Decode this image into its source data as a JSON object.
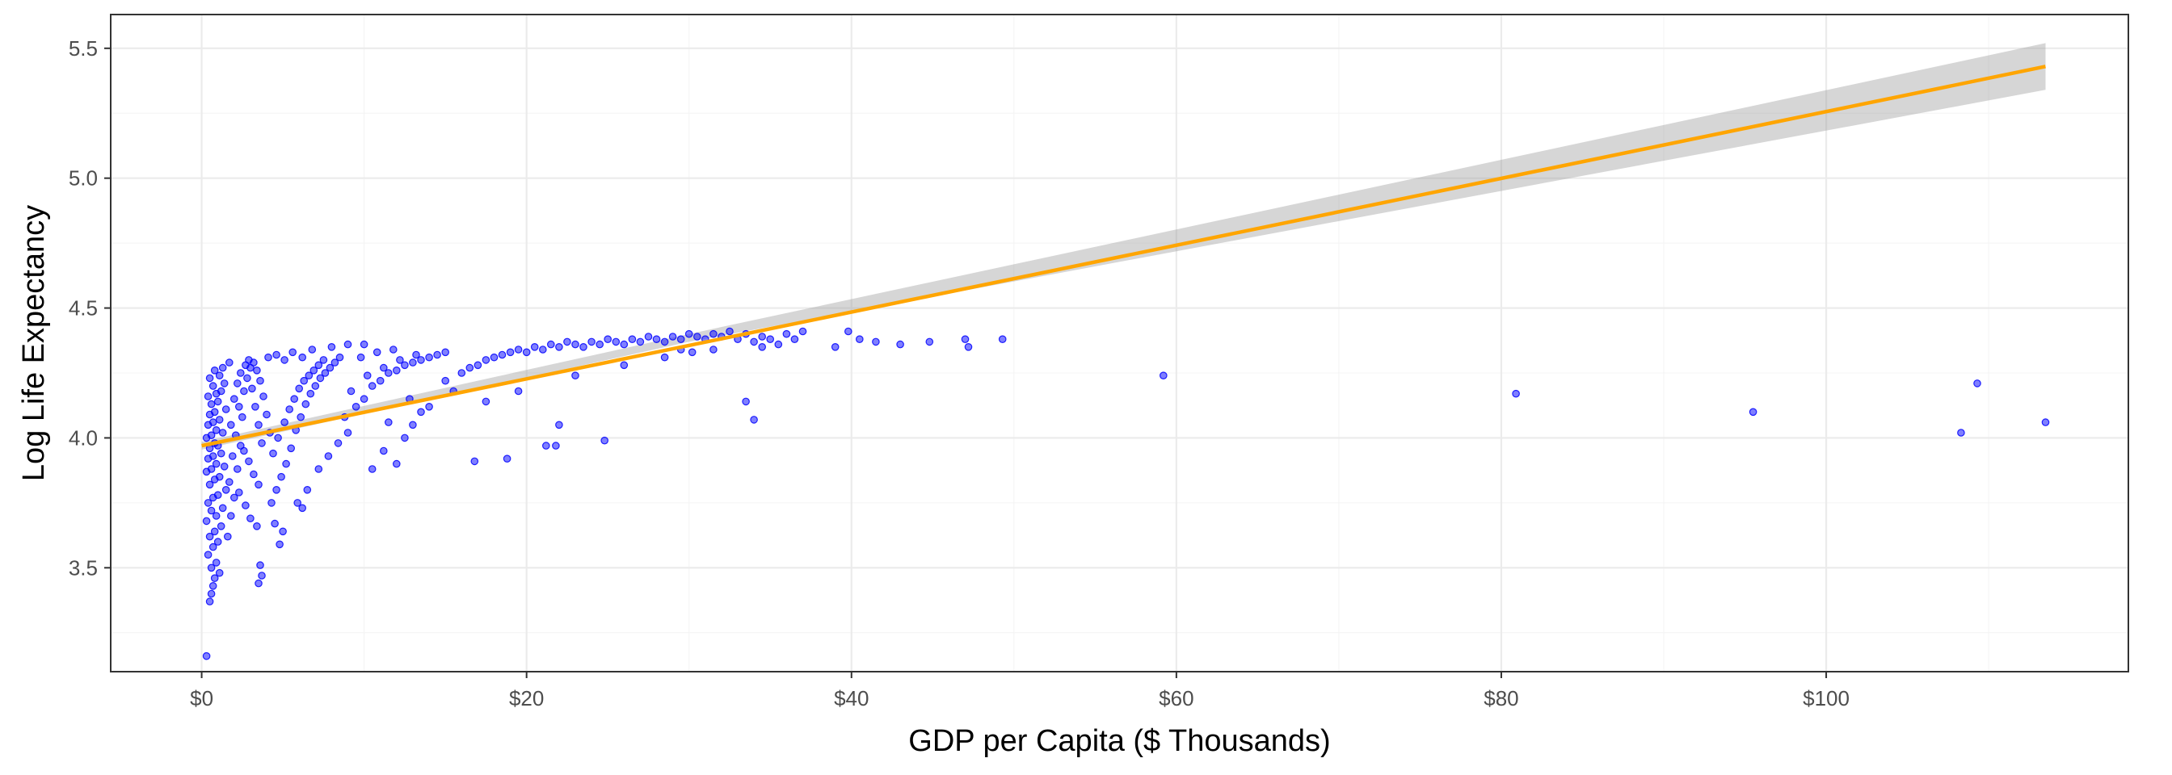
{
  "chart_data": {
    "type": "scatter",
    "title": "",
    "xlabel": "GDP per Capita ($ Thousands)",
    "ylabel": "Log Life Expectancy",
    "xlim": [
      -5.6,
      118.6
    ],
    "ylim": [
      3.1,
      5.63
    ],
    "x_ticks": [
      0,
      20,
      40,
      60,
      80,
      100
    ],
    "x_tick_labels": [
      "$0",
      "$20",
      "$40",
      "$60",
      "$80",
      "$100"
    ],
    "y_ticks": [
      3.5,
      4.0,
      4.5,
      5.0,
      5.5
    ],
    "y_tick_labels": [
      "3.5",
      "4.0",
      "4.5",
      "5.0",
      "5.5"
    ],
    "grid": true,
    "legend": "none",
    "colors": {
      "points": "#0000ff",
      "fit_line": "#ffa500",
      "confidence_band": "#999999"
    },
    "series": [
      {
        "type": "scatter",
        "points": [
          [
            0.3,
            3.16
          ],
          [
            0.5,
            3.37
          ],
          [
            0.6,
            3.4
          ],
          [
            0.7,
            3.43
          ],
          [
            0.8,
            3.46
          ],
          [
            0.6,
            3.5
          ],
          [
            0.9,
            3.52
          ],
          [
            1.1,
            3.48
          ],
          [
            0.4,
            3.55
          ],
          [
            0.7,
            3.58
          ],
          [
            1.0,
            3.6
          ],
          [
            0.5,
            3.62
          ],
          [
            0.8,
            3.64
          ],
          [
            1.2,
            3.66
          ],
          [
            0.3,
            3.68
          ],
          [
            0.9,
            3.7
          ],
          [
            0.6,
            3.72
          ],
          [
            1.3,
            3.73
          ],
          [
            0.4,
            3.75
          ],
          [
            0.7,
            3.77
          ],
          [
            1.0,
            3.78
          ],
          [
            1.5,
            3.8
          ],
          [
            0.5,
            3.82
          ],
          [
            0.8,
            3.84
          ],
          [
            1.1,
            3.85
          ],
          [
            0.3,
            3.87
          ],
          [
            0.6,
            3.88
          ],
          [
            1.4,
            3.89
          ],
          [
            0.9,
            3.9
          ],
          [
            0.4,
            3.92
          ],
          [
            0.7,
            3.93
          ],
          [
            1.2,
            3.94
          ],
          [
            0.5,
            3.96
          ],
          [
            1.0,
            3.97
          ],
          [
            0.8,
            3.98
          ],
          [
            0.3,
            4.0
          ],
          [
            0.6,
            4.01
          ],
          [
            1.3,
            4.02
          ],
          [
            0.9,
            4.03
          ],
          [
            0.4,
            4.05
          ],
          [
            0.7,
            4.06
          ],
          [
            1.1,
            4.07
          ],
          [
            0.5,
            4.09
          ],
          [
            0.8,
            4.1
          ],
          [
            1.5,
            4.11
          ],
          [
            0.6,
            4.13
          ],
          [
            1.0,
            4.14
          ],
          [
            0.4,
            4.16
          ],
          [
            0.9,
            4.17
          ],
          [
            1.2,
            4.18
          ],
          [
            0.7,
            4.2
          ],
          [
            1.4,
            4.21
          ],
          [
            0.5,
            4.23
          ],
          [
            1.1,
            4.24
          ],
          [
            0.8,
            4.26
          ],
          [
            1.3,
            4.27
          ],
          [
            1.6,
            3.62
          ],
          [
            1.8,
            3.7
          ],
          [
            2.0,
            3.77
          ],
          [
            1.7,
            3.83
          ],
          [
            2.2,
            3.88
          ],
          [
            1.9,
            3.93
          ],
          [
            2.4,
            3.97
          ],
          [
            2.1,
            4.01
          ],
          [
            1.8,
            4.05
          ],
          [
            2.5,
            4.08
          ],
          [
            2.3,
            4.12
          ],
          [
            2.0,
            4.15
          ],
          [
            2.6,
            4.18
          ],
          [
            2.2,
            4.21
          ],
          [
            2.8,
            4.23
          ],
          [
            2.4,
            4.25
          ],
          [
            3.0,
            4.27
          ],
          [
            2.7,
            4.28
          ],
          [
            3.2,
            4.29
          ],
          [
            1.7,
            4.29
          ],
          [
            2.9,
            4.3
          ],
          [
            3.4,
            4.26
          ],
          [
            3.6,
            4.22
          ],
          [
            3.1,
            4.19
          ],
          [
            3.8,
            4.16
          ],
          [
            3.3,
            4.12
          ],
          [
            4.0,
            4.09
          ],
          [
            3.5,
            4.05
          ],
          [
            4.2,
            4.02
          ],
          [
            3.7,
            3.98
          ],
          [
            2.6,
            3.95
          ],
          [
            2.9,
            3.91
          ],
          [
            3.2,
            3.86
          ],
          [
            3.5,
            3.82
          ],
          [
            2.3,
            3.79
          ],
          [
            2.7,
            3.74
          ],
          [
            3.0,
            3.69
          ],
          [
            3.4,
            3.66
          ],
          [
            4.5,
            3.67
          ],
          [
            5.0,
            3.64
          ],
          [
            4.8,
            3.59
          ],
          [
            3.6,
            3.51
          ],
          [
            3.7,
            3.47
          ],
          [
            3.5,
            3.44
          ],
          [
            4.3,
            3.75
          ],
          [
            4.6,
            3.8
          ],
          [
            4.9,
            3.85
          ],
          [
            5.2,
            3.9
          ],
          [
            4.4,
            3.94
          ],
          [
            5.5,
            3.96
          ],
          [
            4.7,
            4.0
          ],
          [
            5.8,
            4.03
          ],
          [
            5.1,
            4.06
          ],
          [
            6.1,
            4.08
          ],
          [
            5.4,
            4.11
          ],
          [
            6.4,
            4.13
          ],
          [
            5.7,
            4.15
          ],
          [
            6.7,
            4.17
          ],
          [
            6.0,
            4.19
          ],
          [
            7.0,
            4.2
          ],
          [
            6.3,
            4.22
          ],
          [
            7.3,
            4.23
          ],
          [
            6.6,
            4.24
          ],
          [
            7.6,
            4.25
          ],
          [
            6.9,
            4.26
          ],
          [
            7.9,
            4.27
          ],
          [
            7.2,
            4.28
          ],
          [
            8.2,
            4.29
          ],
          [
            7.5,
            4.3
          ],
          [
            8.5,
            4.31
          ],
          [
            4.1,
            4.31
          ],
          [
            4.6,
            4.32
          ],
          [
            5.1,
            4.3
          ],
          [
            5.6,
            4.33
          ],
          [
            6.2,
            4.31
          ],
          [
            6.8,
            4.34
          ],
          [
            5.9,
            3.75
          ],
          [
            6.2,
            3.73
          ],
          [
            6.5,
            3.8
          ],
          [
            7.2,
            3.88
          ],
          [
            7.8,
            3.93
          ],
          [
            8.4,
            3.98
          ],
          [
            9.0,
            4.02
          ],
          [
            8.8,
            4.08
          ],
          [
            9.5,
            4.12
          ],
          [
            10.0,
            4.15
          ],
          [
            9.2,
            4.18
          ],
          [
            10.5,
            4.2
          ],
          [
            11.0,
            4.22
          ],
          [
            10.2,
            4.24
          ],
          [
            11.5,
            4.25
          ],
          [
            12.0,
            4.26
          ],
          [
            11.2,
            4.27
          ],
          [
            12.5,
            4.28
          ],
          [
            13.0,
            4.29
          ],
          [
            12.2,
            4.3
          ],
          [
            13.5,
            4.3
          ],
          [
            14.0,
            4.31
          ],
          [
            13.2,
            4.32
          ],
          [
            14.5,
            4.32
          ],
          [
            15.0,
            4.33
          ],
          [
            9.8,
            4.31
          ],
          [
            10.8,
            4.33
          ],
          [
            11.8,
            4.34
          ],
          [
            8.0,
            4.35
          ],
          [
            9.0,
            4.36
          ],
          [
            10.0,
            4.36
          ],
          [
            10.5,
            3.88
          ],
          [
            11.2,
            3.95
          ],
          [
            12.0,
            3.9
          ],
          [
            12.5,
            4.0
          ],
          [
            13.0,
            4.05
          ],
          [
            13.5,
            4.1
          ],
          [
            14.0,
            4.12
          ],
          [
            11.5,
            4.06
          ],
          [
            12.8,
            4.15
          ],
          [
            15.5,
            4.18
          ],
          [
            15.0,
            4.22
          ],
          [
            16.0,
            4.25
          ],
          [
            16.5,
            4.27
          ],
          [
            17.0,
            4.28
          ],
          [
            17.5,
            4.3
          ],
          [
            18.0,
            4.31
          ],
          [
            18.5,
            4.32
          ],
          [
            19.0,
            4.33
          ],
          [
            19.5,
            4.34
          ],
          [
            20.0,
            4.33
          ],
          [
            20.5,
            4.35
          ],
          [
            21.0,
            4.34
          ],
          [
            21.5,
            4.36
          ],
          [
            22.0,
            4.35
          ],
          [
            22.5,
            4.37
          ],
          [
            23.0,
            4.36
          ],
          [
            23.5,
            4.35
          ],
          [
            24.0,
            4.37
          ],
          [
            24.5,
            4.36
          ],
          [
            25.0,
            4.38
          ],
          [
            25.5,
            4.37
          ],
          [
            26.0,
            4.36
          ],
          [
            26.5,
            4.38
          ],
          [
            27.0,
            4.37
          ],
          [
            27.5,
            4.39
          ],
          [
            28.0,
            4.38
          ],
          [
            28.5,
            4.37
          ],
          [
            29.0,
            4.39
          ],
          [
            29.5,
            4.38
          ],
          [
            30.0,
            4.4
          ],
          [
            30.5,
            4.39
          ],
          [
            31.0,
            4.38
          ],
          [
            31.5,
            4.4
          ],
          [
            32.0,
            4.39
          ],
          [
            32.5,
            4.41
          ],
          [
            33.0,
            4.38
          ],
          [
            33.5,
            4.4
          ],
          [
            34.0,
            4.37
          ],
          [
            34.5,
            4.39
          ],
          [
            35.0,
            4.38
          ],
          [
            35.5,
            4.36
          ],
          [
            36.0,
            4.4
          ],
          [
            37.0,
            4.41
          ],
          [
            36.5,
            4.38
          ],
          [
            16.8,
            3.91
          ],
          [
            18.8,
            3.92
          ],
          [
            21.2,
            3.97
          ],
          [
            21.8,
            3.97
          ],
          [
            22.0,
            4.05
          ],
          [
            24.8,
            3.99
          ],
          [
            17.5,
            4.14
          ],
          [
            19.5,
            4.18
          ],
          [
            23.0,
            4.24
          ],
          [
            26.0,
            4.28
          ],
          [
            28.5,
            4.31
          ],
          [
            30.2,
            4.33
          ],
          [
            31.5,
            4.34
          ],
          [
            33.5,
            4.14
          ],
          [
            34.0,
            4.07
          ],
          [
            34.5,
            4.35
          ],
          [
            29.5,
            4.34
          ],
          [
            39.0,
            4.35
          ],
          [
            39.8,
            4.41
          ],
          [
            40.5,
            4.38
          ],
          [
            41.5,
            4.37
          ],
          [
            43.0,
            4.36
          ],
          [
            44.8,
            4.37
          ],
          [
            47.0,
            4.38
          ],
          [
            47.2,
            4.35
          ],
          [
            49.3,
            4.38
          ],
          [
            59.2,
            4.24
          ],
          [
            80.9,
            4.17
          ],
          [
            95.5,
            4.1
          ],
          [
            108.3,
            4.02
          ],
          [
            109.3,
            4.21
          ],
          [
            113.5,
            4.06
          ]
        ]
      },
      {
        "type": "line",
        "x": [
          0,
          113.5
        ],
        "y": [
          3.97,
          5.43
        ]
      },
      {
        "type": "area",
        "x": [
          0,
          30,
          113.5
        ],
        "lower": [
          3.955,
          4.37,
          5.34
        ],
        "upper": [
          3.985,
          4.4,
          5.52
        ]
      }
    ]
  }
}
